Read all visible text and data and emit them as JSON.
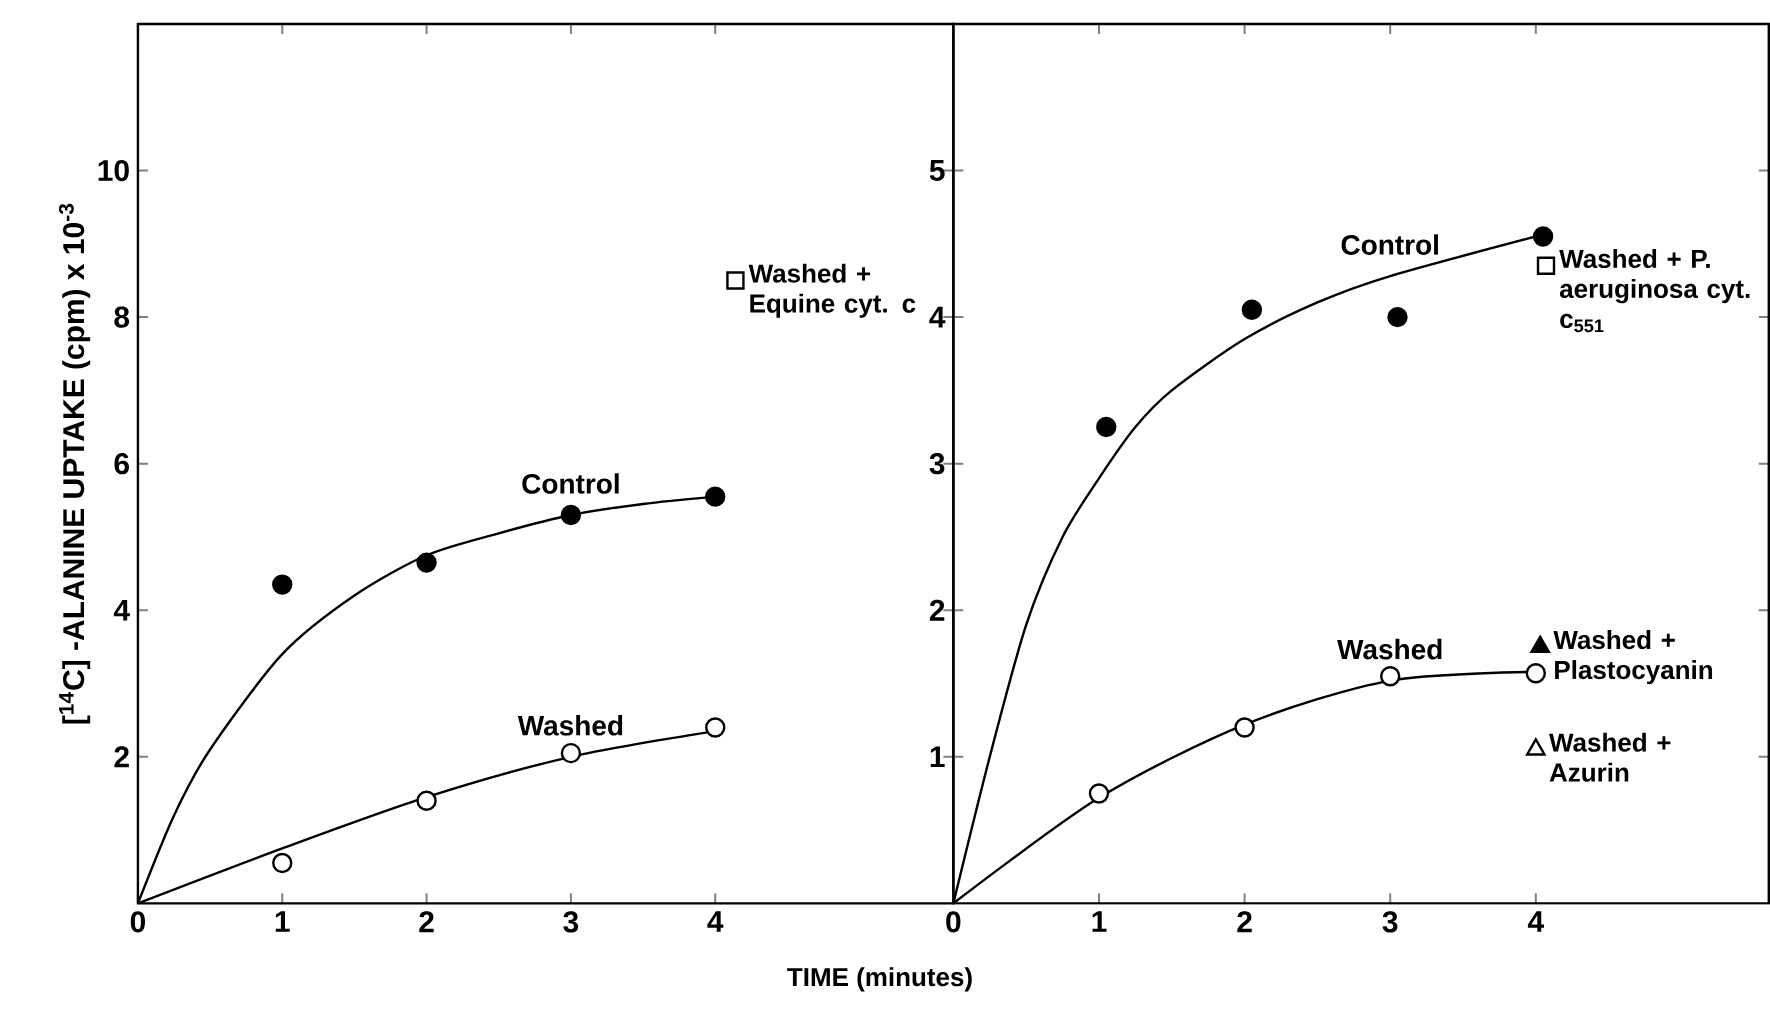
{
  "chart_data": [
    {
      "type": "scatter",
      "xlabel": "TIME (minutes)",
      "ylabel": "[$^{14}$C] -ALANINE UPTAKE (cpm) x 10$^{-3}$",
      "xlim": [
        0,
        5.65
      ],
      "ylim": [
        0,
        12
      ],
      "xticks": [
        0,
        1,
        2,
        3,
        4
      ],
      "yticks": [
        2,
        4,
        6,
        8,
        10
      ],
      "grid": false,
      "series": [
        {
          "type": "line",
          "name": "Control",
          "color": "#000000",
          "marker": "none",
          "line_style": "solid",
          "x": [
            0,
            0.25,
            0.5,
            1,
            1.5,
            2,
            2.5,
            3,
            3.5,
            4
          ],
          "values": [
            0,
            1.2,
            2.1,
            3.4,
            4.2,
            4.75,
            5.05,
            5.3,
            5.45,
            5.55
          ]
        },
        {
          "type": "line",
          "name": "Washed",
          "color": "#000000",
          "marker": "none",
          "line_style": "solid",
          "x": [
            0,
            1,
            2,
            3,
            4
          ],
          "values": [
            0,
            0.75,
            1.45,
            2.0,
            2.35
          ]
        },
        {
          "color": "#000000",
          "marker": "circle",
          "x": [
            1,
            2,
            3,
            4
          ],
          "values": [
            4.35,
            4.65,
            5.3,
            5.55
          ]
        },
        {
          "color": "#ffffff",
          "marker": "circle",
          "x": [
            1,
            2,
            3,
            4
          ],
          "values": [
            0.55,
            1.4,
            2.05,
            2.4
          ]
        },
        {
          "name": "Washed + Equine cyt. c",
          "color": "#ffffff",
          "marker": "square",
          "x": [
            4.14
          ],
          "values": [
            8.5
          ]
        }
      ]
    },
    {
      "type": "scatter",
      "xlim": [
        0,
        5.6
      ],
      "ylim": [
        0,
        6
      ],
      "xticks": [
        0,
        1,
        2,
        3,
        4
      ],
      "yticks": [
        1,
        2,
        3,
        4,
        5
      ],
      "grid": false,
      "series": [
        {
          "type": "line",
          "name": "Control",
          "color": "#000000",
          "marker": "none",
          "line_style": "solid",
          "x": [
            0,
            0.25,
            0.5,
            0.75,
            1,
            1.25,
            1.5,
            2,
            2.5,
            3,
            4
          ],
          "values": [
            0,
            1.0,
            1.9,
            2.5,
            2.9,
            3.25,
            3.5,
            3.85,
            4.1,
            4.28,
            4.55
          ]
        },
        {
          "type": "line",
          "name": "Washed",
          "color": "#000000",
          "marker": "none",
          "line_style": "solid",
          "x": [
            0,
            1,
            2,
            3,
            4
          ],
          "values": [
            0,
            0.72,
            1.22,
            1.52,
            1.58
          ]
        },
        {
          "color": "#000000",
          "marker": "circle",
          "x": [
            1.05,
            2.05,
            3.05,
            4.05
          ],
          "values": [
            3.25,
            4.05,
            4.0,
            4.55
          ]
        },
        {
          "color": "#ffffff",
          "marker": "circle",
          "x": [
            1,
            2,
            3,
            4
          ],
          "values": [
            0.75,
            1.2,
            1.55,
            1.57
          ]
        },
        {
          "name": "Washed + P. aeruginosa cyt. c$_{551}$",
          "color": "#ffffff",
          "marker": "square",
          "x": [
            4.07
          ],
          "values": [
            4.35
          ]
        },
        {
          "name": "Washed + Plastocyanin",
          "color": "#000000",
          "marker": "triangle",
          "x": [
            4.03
          ],
          "values": [
            1.75
          ]
        },
        {
          "name": "Washed + Azurin",
          "color": "#ffffff",
          "marker": "triangle",
          "x": [
            4.0
          ],
          "values": [
            1.05
          ]
        }
      ]
    }
  ]
}
